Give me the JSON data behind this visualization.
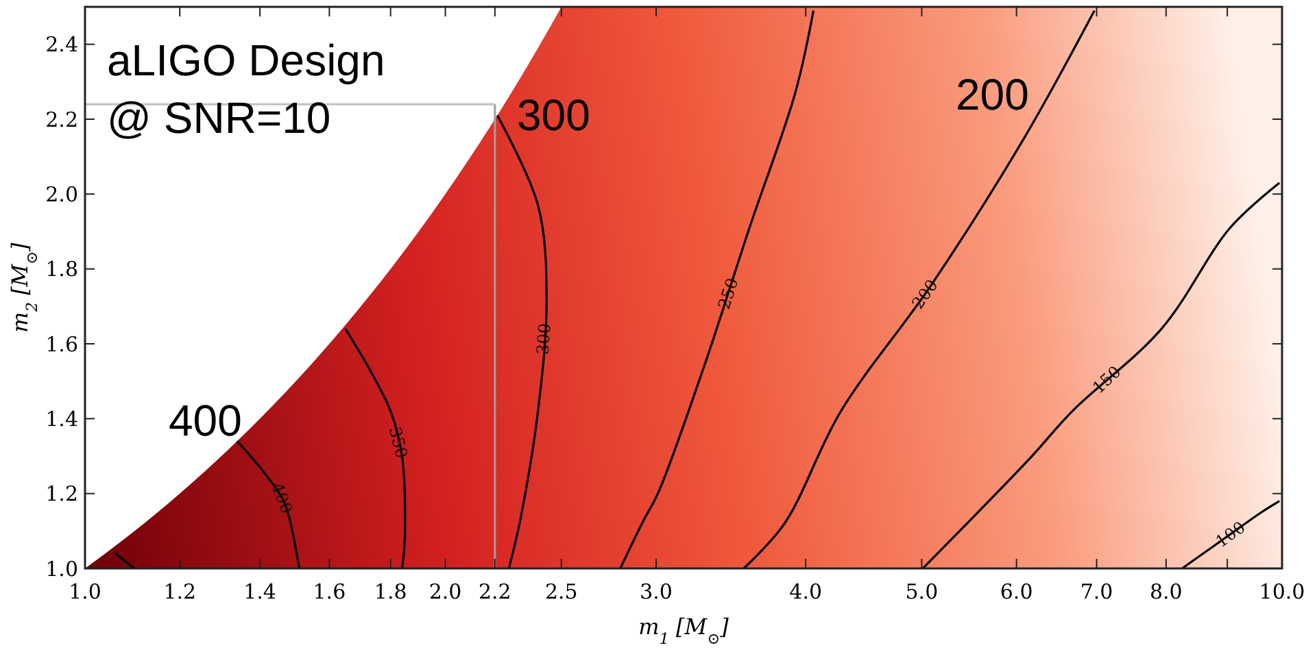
{
  "chart_data": {
    "type": "line",
    "xlabel": "m$_{1}$ [M$_{⊙}$]",
    "ylabel": "m$_{2}$ [M$_{⊙}$]",
    "log": "x",
    "marker": "none",
    "line_style": "solid",
    "xlim": [
      1.0,
      10.0
    ],
    "ylim": [
      1.0,
      2.5
    ],
    "xticks": [
      {
        "value": 1,
        "label": "1.0"
      },
      {
        "value": 1.2,
        "label": "1.2"
      },
      {
        "value": 1.4,
        "label": "1.4"
      },
      {
        "value": 1.6,
        "label": "1.6"
      },
      {
        "value": 1.8,
        "label": "1.8"
      },
      {
        "value": 2,
        "label": "2.0"
      },
      {
        "value": 2.2,
        "label": "2.2"
      },
      {
        "value": 2.5,
        "label": "2.5"
      },
      {
        "value": 3,
        "label": "3.0"
      },
      {
        "value": 4,
        "label": "4.0"
      },
      {
        "value": 5,
        "label": "5.0"
      },
      {
        "value": 6,
        "label": "6.0"
      },
      {
        "value": 7,
        "label": "7.0"
      },
      {
        "value": 8,
        "label": "8.0"
      },
      {
        "value": 9,
        "label": null
      },
      {
        "value": 10,
        "label": "10.0"
      }
    ],
    "yticks": [
      {
        "value": 1,
        "label": "1.0"
      },
      {
        "value": 1.2,
        "label": "1.2"
      },
      {
        "value": 1.4,
        "label": "1.4"
      },
      {
        "value": 1.6,
        "label": "1.6"
      },
      {
        "value": 1.8,
        "label": "1.8"
      },
      {
        "value": 2,
        "label": "2.0"
      },
      {
        "value": 2.2,
        "label": "2.2"
      },
      {
        "value": 2.4,
        "label": "2.4"
      }
    ],
    "series": [
      {
        "color": "#000000",
        "x": [
          1.06,
          1.1
        ],
        "values": [
          1.04,
          1.0
        ]
      },
      {
        "name": "400",
        "color": "#000000",
        "x": [
          1.34,
          1.4,
          1.46,
          1.48,
          1.51
        ],
        "values": [
          1.34,
          1.27,
          1.19,
          1.14,
          1.0
        ]
      },
      {
        "name": "350",
        "color": "#000000",
        "x": [
          1.65,
          1.73,
          1.8,
          1.84,
          1.85,
          1.84
        ],
        "values": [
          1.64,
          1.53,
          1.42,
          1.3,
          1.08,
          1.0
        ]
      },
      {
        "name": "300",
        "color": "#000000",
        "x": [
          2.21,
          2.39,
          2.43,
          2.39,
          2.31,
          2.26
        ],
        "values": [
          2.21,
          1.97,
          1.72,
          1.42,
          1.13,
          1.0
        ]
      },
      {
        "name": "250",
        "color": "#000000",
        "x": [
          2.8,
          2.93,
          3.01,
          3.29,
          3.59,
          3.92,
          4.06
        ],
        "values": [
          1.0,
          1.13,
          1.2,
          1.54,
          1.91,
          2.27,
          2.49
        ]
      },
      {
        "name": "200",
        "color": "#000000",
        "x": [
          3.55,
          3.84,
          4.28,
          5.1,
          6.09,
          6.97
        ],
        "values": [
          1.0,
          1.12,
          1.42,
          1.76,
          2.15,
          2.49
        ]
      },
      {
        "name": "150",
        "color": "#000000",
        "x": [
          5.01,
          6.14,
          6.68,
          7.93,
          9.05,
          9.95
        ],
        "values": [
          1.0,
          1.29,
          1.42,
          1.64,
          1.91,
          2.03
        ]
      },
      {
        "name": "100",
        "color": "#000000",
        "x": [
          8.25,
          8.95,
          9.61,
          9.95
        ],
        "values": [
          1.0,
          1.08,
          1.15,
          1.18
        ]
      }
    ],
    "ref_lines": [
      {
        "axis": "x",
        "value": 2.2,
        "color": "#a0a0a0"
      },
      {
        "axis": "y",
        "value": 2.24,
        "color": "#c0c0c0"
      }
    ],
    "annotations": [
      "aLIGO Design",
      "@ SNR=10",
      "400",
      "300",
      "200"
    ]
  }
}
